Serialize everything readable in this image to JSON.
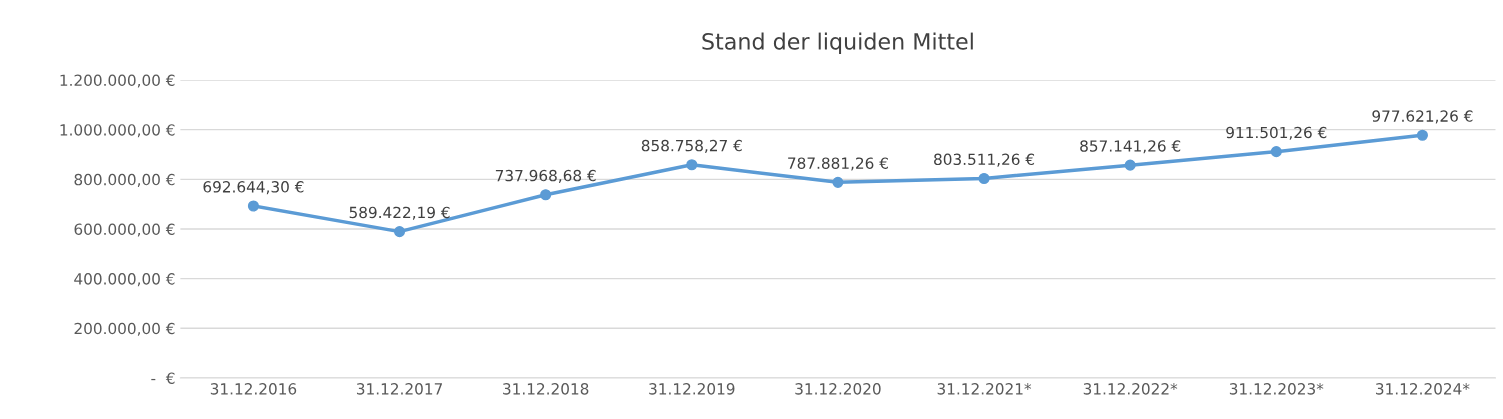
{
  "chart_data": {
    "type": "line",
    "title": "Stand der liquiden Mittel",
    "categories": [
      "31.12.2016",
      "31.12.2017",
      "31.12.2018",
      "31.12.2019",
      "31.12.2020",
      "31.12.2021*",
      "31.12.2022*",
      "31.12.2023*",
      "31.12.2024*"
    ],
    "series": [
      {
        "color": "#5b9bd5",
        "values": [
          692644.3,
          589422.19,
          737968.68,
          858758.27,
          787881.26,
          803511.26,
          857141.26,
          911501.26,
          977621.26
        ],
        "value_labels": [
          "692.644,30 €",
          "589.422,19 €",
          "737.968,68 €",
          "858.758,27 €",
          "787.881,26 €",
          "803.511,26 €",
          "857.141,26 €",
          "911.501,26 €",
          "977.621,26 €"
        ]
      }
    ],
    "ylim": [
      0,
      1200000
    ],
    "yticks": [
      {
        "value": 0,
        "label": "-  €"
      },
      {
        "value": 200000,
        "label": "200.000,00 €"
      },
      {
        "value": 400000,
        "label": "400.000,00 €"
      },
      {
        "value": 600000,
        "label": "600.000,00 €"
      },
      {
        "value": 800000,
        "label": "800.000,00 €"
      },
      {
        "value": 1000000,
        "label": "1.000.000,00 €"
      },
      {
        "value": 1200000,
        "label": "1.200.000,00 €"
      }
    ],
    "grid": "y",
    "marker": "circle",
    "line_style": "solid",
    "legend": false
  }
}
